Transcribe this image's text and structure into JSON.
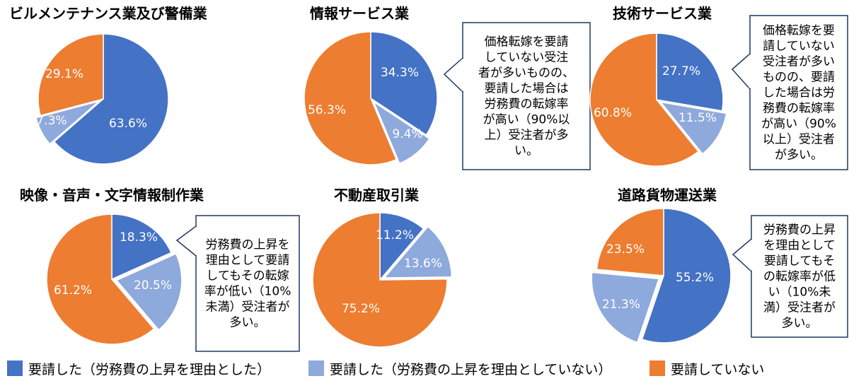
{
  "colors": {
    "requested_labor": "#4472C4",
    "requested_other": "#8EA9DB",
    "not_requested": "#ED7D31",
    "callout_border": "#1F3864"
  },
  "legend": {
    "items": [
      {
        "label": "要請した（労務費の上昇を理由とした）",
        "color": "#4472C4"
      },
      {
        "label": "要請した（労務費の上昇を理由としていない）",
        "color": "#8EA9DB"
      },
      {
        "label": "要請していない",
        "color": "#ED7D31"
      }
    ]
  },
  "chart_data": [
    {
      "type": "pie",
      "title": "ビルメンテナンス業及び警備業",
      "categories": [
        "要請した（労務費の上昇を理由とした）",
        "要請した（労務費の上昇を理由としていない）",
        "要請していない"
      ],
      "values": [
        63.6,
        7.3,
        29.1
      ],
      "labels": [
        "63.6%",
        "7.3%",
        "29.1%"
      ],
      "callout": ""
    },
    {
      "type": "pie",
      "title": "情報サービス業",
      "categories": [
        "要請した（労務費の上昇を理由とした）",
        "要請した（労務費の上昇を理由としていない）",
        "要請していない"
      ],
      "values": [
        34.3,
        9.4,
        56.3
      ],
      "labels": [
        "34.3%",
        "9.4%",
        "56.3%"
      ],
      "callout": [
        "価格転嫁を要請",
        "していない受注",
        "者が多いものの、",
        "要請した場合は",
        "労務費の転嫁率",
        "が高い（90%以",
        "上）受注者が多",
        "い。"
      ]
    },
    {
      "type": "pie",
      "title": "技術サービス業",
      "categories": [
        "要請した（労務費の上昇を理由とした）",
        "要請した（労務費の上昇を理由としていない）",
        "要請していない"
      ],
      "values": [
        27.7,
        11.5,
        60.8
      ],
      "labels": [
        "27.7%",
        "11.5%",
        "60.8%"
      ],
      "callout": [
        "価格転嫁を要",
        "請していない",
        "受注者が多い",
        "ものの、要請",
        "した場合は労",
        "務費の転嫁率",
        "が高い（90%",
        "以上）受注者",
        "が多い。"
      ]
    },
    {
      "type": "pie",
      "title": "映像・音声・文字情報制作業",
      "categories": [
        "要請した（労務費の上昇を理由とした）",
        "要請した（労務費の上昇を理由としていない）",
        "要請していない"
      ],
      "values": [
        18.3,
        20.5,
        61.2
      ],
      "labels": [
        "18.3%",
        "20.5%",
        "61.2%"
      ],
      "callout": [
        "労務費の上昇を",
        "理由として要請",
        "してもその転嫁",
        "率が低い（10%",
        "未満）受注者が",
        "多い。"
      ]
    },
    {
      "type": "pie",
      "title": "不動産取引業",
      "categories": [
        "要請した（労務費の上昇を理由とした）",
        "要請した（労務費の上昇を理由としていない）",
        "要請していない"
      ],
      "values": [
        11.2,
        13.6,
        75.2
      ],
      "labels": [
        "11.2%",
        "13.6%",
        "75.2%"
      ],
      "callout": ""
    },
    {
      "type": "pie",
      "title": "道路貨物運送業",
      "categories": [
        "要請した（労務費の上昇を理由とした）",
        "要請した（労務費の上昇を理由としていない）",
        "要請していない"
      ],
      "values": [
        55.2,
        21.3,
        23.5
      ],
      "labels": [
        "55.2%",
        "21.3%",
        "23.5%"
      ],
      "callout": [
        "労務費の上昇",
        "を理由として",
        "要請してもそ",
        "の転嫁率が低",
        "い（10%未",
        "満）受注者が",
        "多い。"
      ]
    }
  ]
}
